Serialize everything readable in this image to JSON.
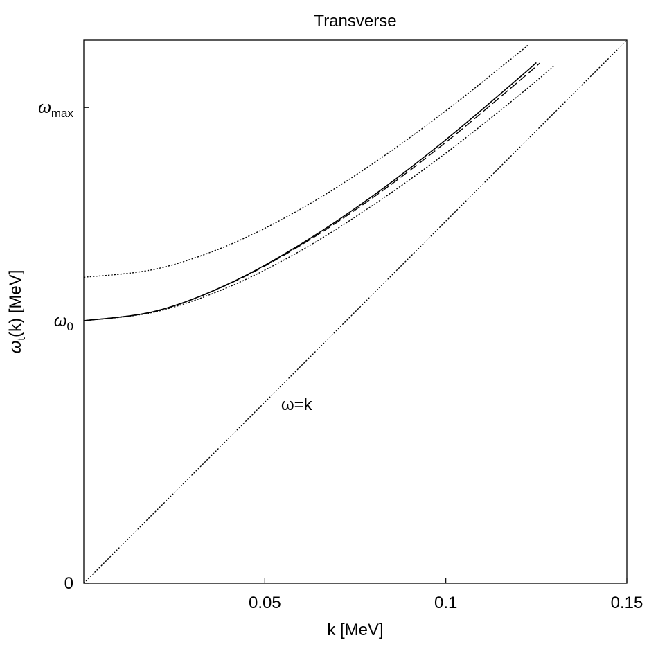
{
  "chart_data": {
    "type": "line",
    "title": "Transverse",
    "xlabel": "k [MeV]",
    "ylabel": "ω_t(k) [MeV]",
    "ylabel_main": "ω",
    "ylabel_sub": "t",
    "ylabel_rest": "(k) [MeV]",
    "xlim": [
      0,
      0.15
    ],
    "ylim": [
      0,
      0.15
    ],
    "x_ticks": [
      {
        "value": 0.05,
        "label": "0.05"
      },
      {
        "value": 0.1,
        "label": "0.1"
      },
      {
        "value": 0.15,
        "label": "0.15"
      }
    ],
    "y_ticks": [
      {
        "value": 0,
        "label": "0",
        "sub": ""
      },
      {
        "value": 0.0725,
        "label": "ω",
        "sub": "0"
      },
      {
        "value": 0.1314,
        "label": "ω",
        "sub": "max"
      }
    ],
    "annotations": [
      {
        "text": "ω=k",
        "x": 0.0545,
        "y": 0.0478
      }
    ],
    "grid": false,
    "series": [
      {
        "style": "solid",
        "omega0": 0.0725,
        "points": [
          [
            0,
            0.0725
          ],
          [
            0.02,
            0.0752
          ],
          [
            0.04,
            0.0827
          ],
          [
            0.06,
            0.0937
          ],
          [
            0.08,
            0.1071
          ],
          [
            0.1,
            0.1225
          ],
          [
            0.12,
            0.1394
          ],
          [
            0.125,
            0.1438
          ]
        ]
      },
      {
        "style": "dashed",
        "omega0": 0.0725,
        "points": [
          [
            0,
            0.0725
          ],
          [
            0.02,
            0.0752
          ],
          [
            0.04,
            0.0826
          ],
          [
            0.06,
            0.0934
          ],
          [
            0.08,
            0.1066
          ],
          [
            0.1,
            0.1218
          ],
          [
            0.12,
            0.1385
          ],
          [
            0.126,
            0.1437
          ]
        ]
      },
      {
        "style": "dotted",
        "omega0": 0.0845,
        "points": [
          [
            0,
            0.0845
          ],
          [
            0.02,
            0.0868
          ],
          [
            0.04,
            0.0934
          ],
          [
            0.06,
            0.1034
          ],
          [
            0.08,
            0.116
          ],
          [
            0.1,
            0.1305
          ],
          [
            0.12,
            0.1464
          ],
          [
            0.1225,
            0.1485
          ]
        ]
      },
      {
        "style": "dotted",
        "omega0": 0.0725,
        "points": [
          [
            0,
            0.0725
          ],
          [
            0.02,
            0.075
          ],
          [
            0.04,
            0.0818
          ],
          [
            0.06,
            0.0919
          ],
          [
            0.08,
            0.1045
          ],
          [
            0.1,
            0.1188
          ],
          [
            0.12,
            0.1346
          ],
          [
            0.13,
            0.143
          ]
        ]
      },
      {
        "style": "dotted",
        "omega0": 0,
        "points": [
          [
            0,
            0
          ],
          [
            0.15,
            0.15
          ]
        ]
      }
    ]
  }
}
